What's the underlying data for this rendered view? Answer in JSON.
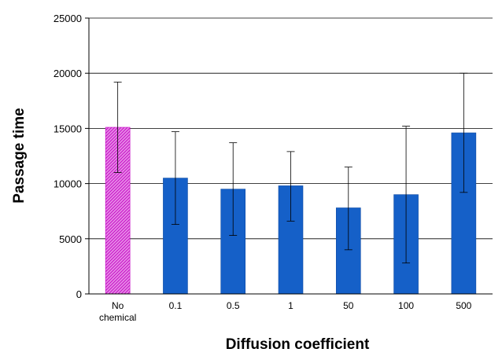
{
  "chart_data": {
    "type": "bar",
    "xlabel": "Diffusion coefficient",
    "ylabel": "Passage time",
    "ylim": [
      0,
      25000
    ],
    "yticks": [
      0,
      5000,
      10000,
      15000,
      20000,
      25000
    ],
    "grid": true,
    "categories": [
      [
        "No",
        "chemical"
      ],
      [
        "0.1"
      ],
      [
        "0.5"
      ],
      [
        "1"
      ],
      [
        "50"
      ],
      [
        "100"
      ],
      [
        "500"
      ]
    ],
    "values": [
      15100,
      10500,
      9500,
      9800,
      7800,
      9000,
      14600
    ],
    "error_upper": [
      19200,
      14700,
      13700,
      12900,
      11500,
      15200,
      20000
    ],
    "error_lower": [
      11000,
      6300,
      5300,
      6600,
      4000,
      2800,
      9200
    ],
    "colors": [
      "#e666e6",
      "#1560c8",
      "#1560c8",
      "#1560c8",
      "#1560c8",
      "#1560c8",
      "#1560c8"
    ],
    "highlight": [
      true,
      false,
      false,
      false,
      false,
      false,
      false
    ]
  }
}
